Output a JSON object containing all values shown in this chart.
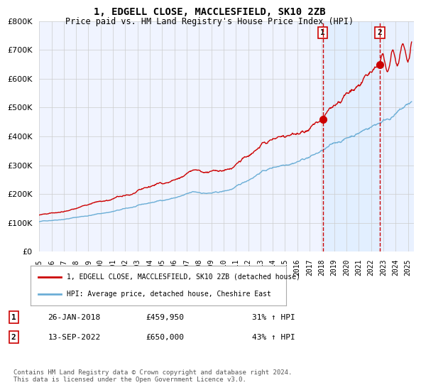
{
  "title1": "1, EDGELL CLOSE, MACCLESFIELD, SK10 2ZB",
  "title2": "Price paid vs. HM Land Registry's House Price Index (HPI)",
  "xlabel": "",
  "ylabel": "",
  "ylim": [
    0,
    800000
  ],
  "yticks": [
    0,
    100000,
    200000,
    300000,
    400000,
    500000,
    600000,
    700000,
    800000
  ],
  "ytick_labels": [
    "£0",
    "£100K",
    "£200K",
    "£300K",
    "£400K",
    "£500K",
    "£600K",
    "£700K",
    "£800K"
  ],
  "hpi_color": "#6baed6",
  "price_color": "#cc0000",
  "vline_color": "#cc0000",
  "bg_color": "#ffffff",
  "grid_color": "#cccccc",
  "sale1_date": "26-JAN-2018",
  "sale1_price": 459950,
  "sale1_hpi": "31%",
  "sale2_date": "13-SEP-2022",
  "sale2_price": 650000,
  "sale2_hpi": "43%",
  "legend_label1": "1, EDGELL CLOSE, MACCLESFIELD, SK10 2ZB (detached house)",
  "legend_label2": "HPI: Average price, detached house, Cheshire East",
  "footnote": "Contains HM Land Registry data © Crown copyright and database right 2024.\nThis data is licensed under the Open Government Licence v3.0.",
  "sale1_x": 2018.07,
  "sale2_x": 2022.71,
  "xlim_start": 1995.0,
  "xlim_end": 2025.5
}
